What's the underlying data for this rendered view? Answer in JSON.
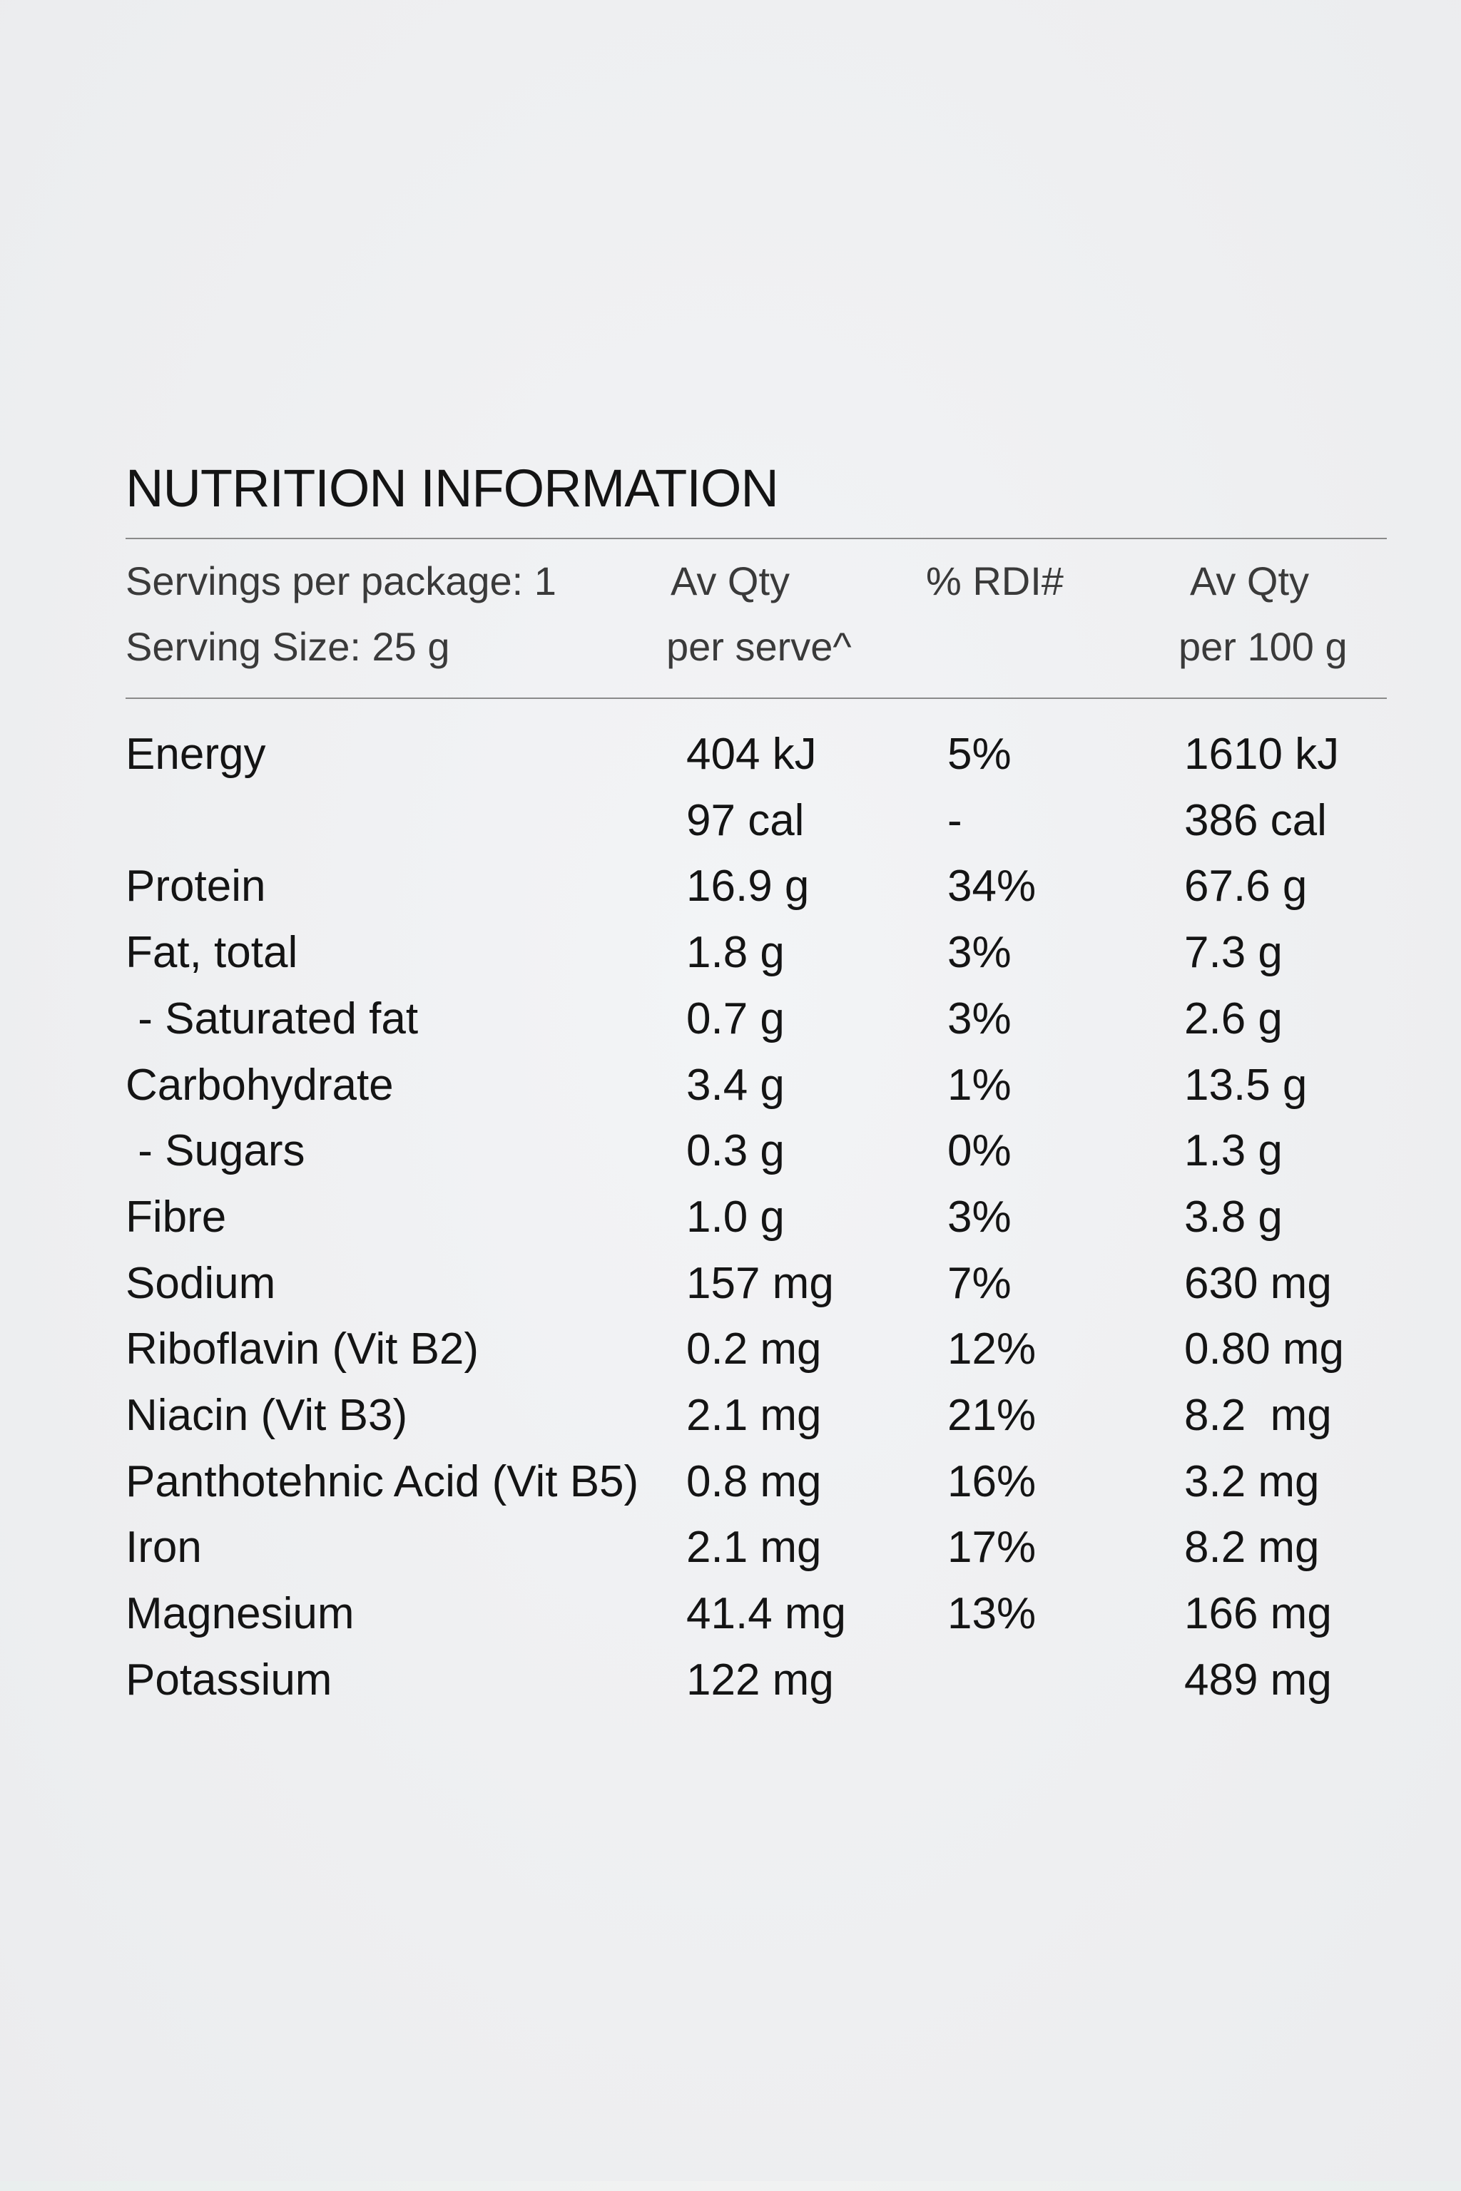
{
  "title": "NUTRITION INFORMATION",
  "header": {
    "servings_per_package": "Servings per package: 1",
    "serving_size": "Serving Size: 25 g",
    "col_qty_line1": "Av Qty",
    "col_qty_line2": "per serve^",
    "col_rdi": "% RDI#",
    "col_100_line1": "Av Qty",
    "col_100_line2": "per 100 g"
  },
  "rows": [
    {
      "name": "Energy",
      "qty": "404 kJ",
      "rdi": "5%",
      "per100": "1610 kJ"
    },
    {
      "name": "",
      "qty": "97 cal",
      "rdi": "-",
      "per100": "386 cal"
    },
    {
      "name": "Protein",
      "qty": "16.9 g",
      "rdi": "34%",
      "per100": "67.6 g"
    },
    {
      "name": "Fat, total",
      "qty": "1.8 g",
      "rdi": "3%",
      "per100": "7.3 g"
    },
    {
      "name": " - Saturated fat",
      "qty": "0.7 g",
      "rdi": "3%",
      "per100": "2.6 g"
    },
    {
      "name": "Carbohydrate",
      "qty": "3.4 g",
      "rdi": "1%",
      "per100": "13.5 g"
    },
    {
      "name": " - Sugars",
      "qty": "0.3 g",
      "rdi": "0%",
      "per100": "1.3 g"
    },
    {
      "name": "Fibre",
      "qty": "1.0 g",
      "rdi": "3%",
      "per100": "3.8 g"
    },
    {
      "name": "Sodium",
      "qty": "157 mg",
      "rdi": "7%",
      "per100": "630 mg"
    },
    {
      "name": "Riboflavin (Vit B2)",
      "qty": "0.2 mg",
      "rdi": "12%",
      "per100": "0.80 mg"
    },
    {
      "name": "Niacin (Vit B3)",
      "qty": "2.1 mg",
      "rdi": "21%",
      "per100": "8.2  mg"
    },
    {
      "name": "Panthotehnic Acid (Vit B5)",
      "qty": "0.8 mg",
      "rdi": "16%",
      "per100": "3.2 mg"
    },
    {
      "name": "Iron",
      "qty": "2.1 mg",
      "rdi": "17%",
      "per100": "8.2 mg"
    },
    {
      "name": "Magnesium",
      "qty": "41.4 mg",
      "rdi": "13%",
      "per100": "166 mg"
    },
    {
      "name": "Potassium",
      "qty": "122 mg",
      "rdi": "",
      "per100": "489 mg"
    }
  ]
}
